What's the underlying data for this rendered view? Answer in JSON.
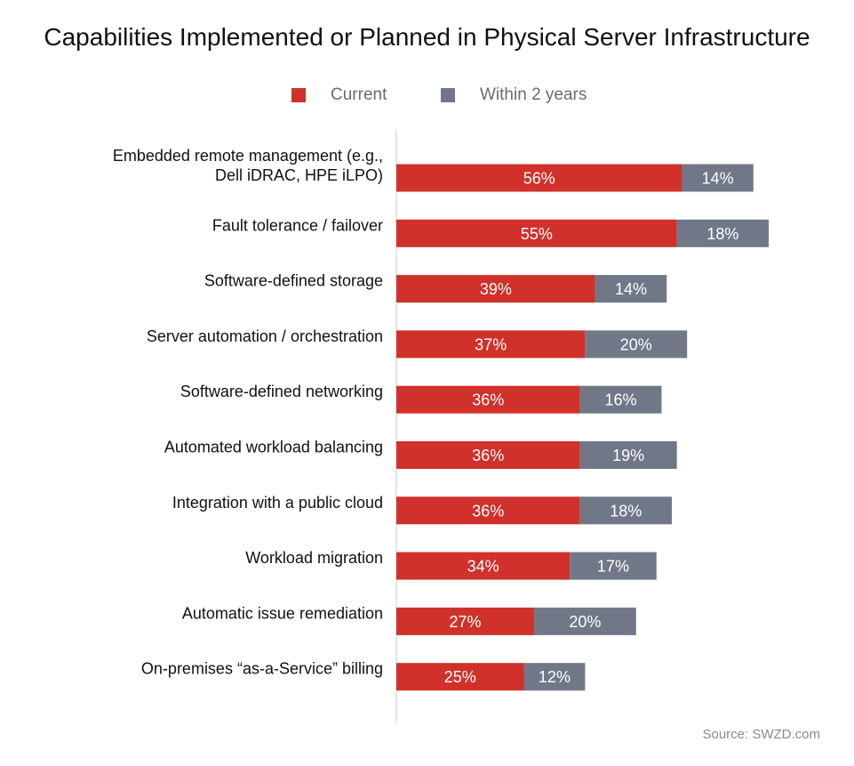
{
  "chart_data": {
    "type": "bar",
    "orientation": "horizontal",
    "stacked": true,
    "title": "Capabilities Implemented or Planned in Physical Server Infrastructure",
    "categories": [
      [
        "Embedded remote management (e.g.,",
        "Dell iDRAC, HPE iLPO)"
      ],
      [
        "Fault tolerance / failover"
      ],
      [
        "Software-defined storage"
      ],
      [
        "Server automation / orchestration"
      ],
      [
        "Software-defined networking"
      ],
      [
        "Automated workload balancing"
      ],
      [
        "Integration with a public cloud"
      ],
      [
        "Workload migration"
      ],
      [
        "Automatic issue remediation"
      ],
      [
        "On-premises “as-a-Service” billing"
      ]
    ],
    "series": [
      {
        "name": "Current",
        "color": "#d0312a",
        "values": [
          56,
          55,
          39,
          37,
          36,
          36,
          36,
          34,
          27,
          25
        ]
      },
      {
        "name": "Within 2 years",
        "color": "#707888",
        "values": [
          14,
          18,
          14,
          20,
          16,
          19,
          18,
          17,
          20,
          12
        ]
      }
    ],
    "value_suffix": "%",
    "xlim": [
      0,
      100
    ],
    "grid": false,
    "legend_position": "top-center",
    "source": "Source: SWZD.com"
  }
}
